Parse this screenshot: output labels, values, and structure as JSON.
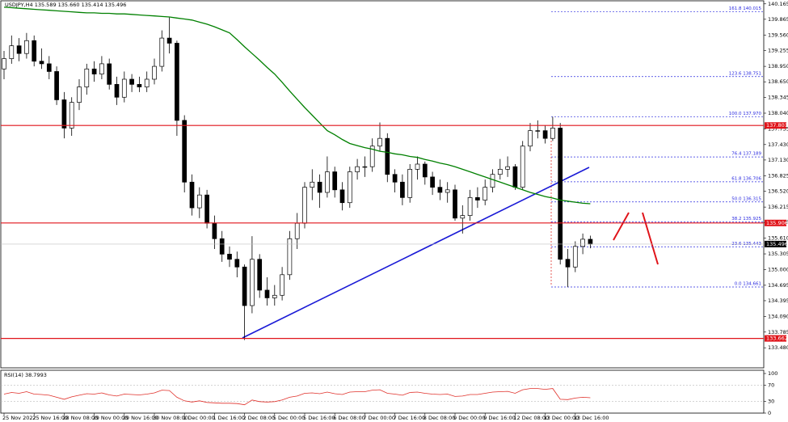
{
  "chart_data": {
    "type": "candlestick",
    "title": "USDJPY,H4 135.589 135.660 135.414 135.496",
    "categories": [
      "25 Nov 2022",
      null,
      null,
      null,
      "25 Nov 16:00",
      null,
      null,
      null,
      "28 Nov 08:00",
      null,
      null,
      null,
      "29 Nov 00:00",
      null,
      null,
      null,
      "29 Nov 16:00",
      null,
      null,
      null,
      "30 Nov 08:00",
      null,
      null,
      null,
      "1 Dec 00:00",
      null,
      null,
      null,
      "1 Dec 16:00",
      null,
      null,
      null,
      "2 Dec 08:00",
      null,
      null,
      null,
      "5 Dec 00:00",
      null,
      null,
      null,
      "5 Dec 16:00",
      null,
      null,
      null,
      "6 Dec 08:00",
      null,
      null,
      null,
      "7 Dec 00:00",
      null,
      null,
      null,
      "7 Dec 16:00",
      null,
      null,
      null,
      "8 Dec 08:00",
      null,
      null,
      null,
      "9 Dec 00:00",
      null,
      null,
      null,
      "9 Dec 16:00",
      null,
      null,
      null,
      "12 Dec 08:00",
      null,
      null,
      null,
      "13 Dec 00:00",
      null,
      null,
      null,
      "13 Dec 16:00",
      null,
      null
    ],
    "open": [
      138.9,
      139.1,
      139.35,
      139.2,
      139.45,
      139.05,
      139.0,
      138.85,
      138.3,
      137.75,
      138.25,
      138.55,
      138.9,
      138.8,
      139.0,
      138.6,
      138.35,
      138.7,
      138.6,
      138.55,
      138.7,
      138.95,
      139.5,
      139.4,
      137.9,
      136.7,
      136.2,
      136.45,
      135.9,
      135.6,
      135.3,
      135.2,
      135.05,
      134.3,
      135.2,
      134.6,
      134.45,
      134.5,
      134.9,
      135.6,
      135.9,
      136.6,
      136.7,
      136.5,
      136.9,
      136.55,
      136.3,
      136.9,
      137.0,
      137.0,
      137.4,
      137.55,
      136.85,
      136.7,
      136.4,
      136.95,
      137.05,
      136.8,
      136.6,
      136.5,
      136.55,
      136.0,
      136.05,
      136.4,
      136.35,
      136.6,
      136.85,
      136.95,
      137.0,
      136.6,
      137.4,
      137.7,
      137.7,
      137.55,
      137.75,
      135.2,
      135.05,
      135.45,
      135.589
    ],
    "high": [
      139.25,
      139.55,
      139.5,
      139.6,
      139.55,
      139.3,
      139.15,
      138.95,
      138.45,
      138.35,
      138.7,
      139.0,
      139.05,
      139.15,
      139.1,
      138.75,
      138.85,
      138.8,
      138.75,
      138.85,
      139.1,
      139.65,
      139.9,
      139.45,
      138.0,
      136.85,
      136.6,
      136.55,
      136.05,
      135.75,
      135.45,
      135.35,
      135.1,
      135.65,
      135.3,
      134.85,
      134.7,
      135.05,
      135.75,
      136.1,
      136.7,
      136.95,
      136.85,
      137.2,
      137.0,
      136.7,
      137.0,
      137.15,
      137.2,
      137.55,
      137.86,
      137.65,
      136.95,
      136.85,
      137.05,
      137.2,
      137.1,
      136.9,
      136.75,
      136.7,
      136.65,
      136.25,
      136.55,
      136.6,
      136.75,
      136.95,
      137.15,
      137.2,
      137.05,
      137.5,
      137.85,
      137.9,
      137.8,
      137.97,
      137.85,
      135.4,
      135.55,
      135.7,
      135.66
    ],
    "low": [
      138.7,
      139.0,
      139.05,
      139.1,
      138.95,
      138.9,
      138.7,
      138.2,
      137.55,
      137.6,
      138.1,
      138.4,
      138.65,
      138.7,
      138.5,
      138.2,
      138.25,
      138.45,
      138.45,
      138.45,
      138.6,
      138.85,
      139.2,
      137.6,
      136.5,
      136.05,
      136.0,
      135.8,
      135.4,
      135.15,
      135.05,
      134.85,
      133.63,
      134.15,
      134.45,
      134.3,
      134.3,
      134.4,
      134.8,
      135.4,
      135.8,
      136.35,
      136.2,
      136.4,
      136.4,
      136.15,
      136.2,
      136.75,
      136.8,
      136.9,
      137.3,
      136.7,
      136.5,
      136.25,
      136.3,
      136.75,
      136.65,
      136.45,
      136.35,
      136.3,
      135.95,
      135.7,
      135.95,
      136.2,
      136.25,
      136.5,
      136.75,
      136.8,
      136.55,
      136.55,
      137.3,
      137.55,
      137.45,
      137.5,
      135.1,
      134.66,
      134.95,
      135.3,
      135.414
    ],
    "close": [
      139.1,
      139.35,
      139.2,
      139.45,
      139.05,
      139.0,
      138.85,
      138.3,
      137.75,
      138.25,
      138.55,
      138.9,
      138.8,
      139.0,
      138.6,
      138.35,
      138.7,
      138.6,
      138.55,
      138.7,
      138.95,
      139.5,
      139.4,
      137.9,
      136.7,
      136.2,
      136.45,
      135.9,
      135.6,
      135.3,
      135.2,
      135.05,
      134.3,
      135.2,
      134.6,
      134.45,
      134.5,
      134.9,
      135.6,
      135.9,
      136.6,
      136.7,
      136.5,
      136.9,
      136.55,
      136.3,
      136.9,
      137.0,
      137.0,
      137.4,
      137.55,
      136.85,
      136.7,
      136.4,
      136.95,
      137.05,
      136.8,
      136.6,
      136.5,
      136.55,
      136.0,
      136.05,
      136.4,
      136.35,
      136.6,
      136.85,
      136.95,
      137.0,
      136.6,
      137.4,
      137.7,
      137.7,
      137.55,
      137.75,
      135.2,
      135.05,
      135.45,
      135.59,
      135.496
    ],
    "ma": {
      "color": "#008000",
      "values": [
        140.1,
        140.09,
        140.08,
        140.07,
        140.06,
        140.05,
        140.04,
        140.03,
        140.02,
        140.01,
        140.0,
        139.99,
        139.99,
        139.98,
        139.98,
        139.97,
        139.97,
        139.96,
        139.95,
        139.94,
        139.93,
        139.92,
        139.91,
        139.89,
        139.87,
        139.85,
        139.81,
        139.77,
        139.72,
        139.66,
        139.6,
        139.47,
        139.33,
        139.2,
        139.07,
        138.93,
        138.8,
        138.64,
        138.47,
        138.31,
        138.15,
        138.0,
        137.85,
        137.7,
        137.62,
        137.53,
        137.45,
        137.41,
        137.37,
        137.34,
        137.3,
        137.28,
        137.25,
        137.23,
        137.2,
        137.18,
        137.14,
        137.11,
        137.07,
        137.04,
        137.0,
        136.95,
        136.9,
        136.85,
        136.8,
        136.75,
        136.7,
        136.65,
        136.6,
        136.55,
        136.5,
        136.46,
        136.42,
        136.39,
        136.35,
        136.33,
        136.31,
        136.29,
        136.28
      ]
    },
    "current_price": "135.496",
    "ylim": [
      133.09,
      140.24
    ],
    "yticks": [
      {
        "value": 140.165,
        "label": "140.165"
      },
      {
        "value": 139.865,
        "label": "139.865"
      },
      {
        "value": 139.56,
        "label": "139.560"
      },
      {
        "value": 139.255,
        "label": "139.255"
      },
      {
        "value": 138.95,
        "label": "138.950"
      },
      {
        "value": 138.65,
        "label": "138.650"
      },
      {
        "value": 138.345,
        "label": "138.345"
      },
      {
        "value": 138.04,
        "label": "138.040"
      },
      {
        "value": 137.735,
        "label": "137.735"
      },
      {
        "value": 137.43,
        "label": "137.430"
      },
      {
        "value": 137.13,
        "label": "137.130"
      },
      {
        "value": 136.825,
        "label": "136.825"
      },
      {
        "value": 136.52,
        "label": "136.520"
      },
      {
        "value": 136.215,
        "label": "136.215"
      },
      {
        "value": 135.915,
        "label": "135.915"
      },
      {
        "value": 135.61,
        "label": "135.610"
      },
      {
        "value": 135.305,
        "label": "135.305"
      },
      {
        "value": 135.0,
        "label": "135.000"
      },
      {
        "value": 134.695,
        "label": "134.695"
      },
      {
        "value": 134.395,
        "label": "134.395"
      },
      {
        "value": 134.09,
        "label": "134.090"
      },
      {
        "value": 133.785,
        "label": "133.785"
      },
      {
        "value": 133.48,
        "label": "133.480"
      }
    ],
    "levels": [
      {
        "value": 137.801,
        "label": "137.801"
      },
      {
        "value": 135.906,
        "label": "135.906"
      },
      {
        "value": 133.662,
        "label": "133.662"
      }
    ],
    "fib": [
      {
        "value": 140.015,
        "label": "161.8 140.015"
      },
      {
        "value": 138.751,
        "label": "123.6 138.751"
      },
      {
        "value": 137.97,
        "label": "100.0 137.970"
      },
      {
        "value": 137.189,
        "label": "76.4 137.189"
      },
      {
        "value": 136.706,
        "label": "61.8 136.706"
      },
      {
        "value": 136.315,
        "label": "50.0 136.315"
      },
      {
        "value": 135.925,
        "label": "38.2 135.925"
      },
      {
        "value": 135.443,
        "label": "23.6 135.443"
      },
      {
        "value": 134.661,
        "label": "0.0 134.661"
      }
    ],
    "rsi": {
      "title": "RSI(14) 38.7993",
      "color": "#e0302a",
      "ylim": [
        0,
        100
      ],
      "yticks": [
        100,
        70,
        30,
        0
      ],
      "values": [
        48,
        52,
        50,
        54,
        48,
        47,
        45,
        40,
        35,
        41,
        45,
        49,
        48,
        51,
        46,
        43,
        48,
        47,
        46,
        48,
        51,
        58,
        57,
        40,
        31,
        28,
        31,
        27,
        26,
        25,
        25,
        24,
        21,
        33,
        29,
        28,
        29,
        33,
        40,
        43,
        50,
        51,
        49,
        53,
        49,
        47,
        53,
        54,
        54,
        58,
        59,
        50,
        48,
        45,
        52,
        53,
        50,
        48,
        47,
        48,
        42,
        43,
        47,
        47,
        50,
        53,
        54,
        55,
        50,
        59,
        62,
        62,
        60,
        62,
        35,
        34,
        38,
        40,
        38.7993
      ]
    }
  }
}
